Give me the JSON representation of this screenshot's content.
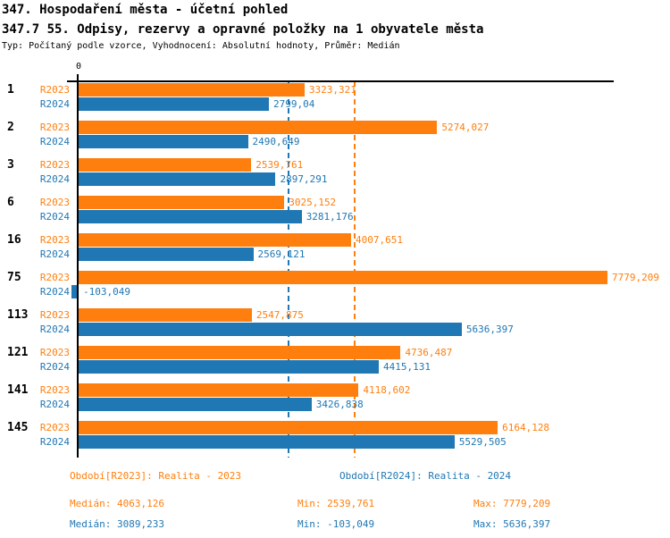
{
  "header": {
    "title": "347. Hospodaření města - účetní pohled",
    "subtitle": "347.7 55. Odpisy, rezervy a opravné položky na 1 obyvatele města",
    "meta": "Typ: Počítaný podle vzorce, Vyhodnocení: Absolutní hodnoty, Průměr: Medián"
  },
  "colors": {
    "r2023": "#ff7f0e",
    "r2024": "#1f77b4",
    "axis": "#000000"
  },
  "axis": {
    "zero_tick_label": "0"
  },
  "chart_data": {
    "type": "bar",
    "orientation": "horizontal",
    "title": "347.7 55. Odpisy, rezervy a opravné položky na 1 obyvatele města",
    "xlim": [
      0,
      7800
    ],
    "grid": false,
    "x_ticks": [
      "0"
    ],
    "categories": [
      "1",
      "2",
      "3",
      "6",
      "16",
      "75",
      "113",
      "121",
      "141",
      "145"
    ],
    "series": [
      {
        "name": "R2023",
        "color": "#ff7f0e",
        "values": [
          3323.321,
          5274.027,
          2539.761,
          3025.152,
          4007.651,
          7779.209,
          2547.875,
          4736.487,
          4118.602,
          6164.128
        ],
        "value_labels": [
          "3323,321",
          "5274,027",
          "2539,761",
          "3025,152",
          "4007,651",
          "7779,209",
          "2547,875",
          "4736,487",
          "4118,602",
          "6164,128"
        ]
      },
      {
        "name": "R2024",
        "color": "#1f77b4",
        "values": [
          2799.04,
          2490.649,
          2897.291,
          3281.176,
          2569.121,
          -103.049,
          5636.397,
          4415.131,
          3426.838,
          5529.505
        ],
        "value_labels": [
          "2799,04",
          "2490,649",
          "2897,291",
          "3281,176",
          "2569,121",
          "-103,049",
          "5636,397",
          "4415,131",
          "3426,838",
          "5529,505"
        ]
      }
    ],
    "median_lines": [
      {
        "series": "R2023",
        "value": 4063.126,
        "color": "#ff7f0e",
        "style": "dashed"
      },
      {
        "series": "R2024",
        "value": 3089.233,
        "color": "#1f77b4",
        "style": "dashed"
      }
    ],
    "legend_position": "bottom"
  },
  "legend": {
    "r2023": "Období[R2023]: Realita - 2023",
    "r2024": "Období[R2024]: Realita - 2024"
  },
  "stats": {
    "r2023": {
      "median": "Medián: 4063,126",
      "min": "Min: 2539,761",
      "max": "Max: 7779,209"
    },
    "r2024": {
      "median": "Medián: 3089,233",
      "min": "Min: -103,049",
      "max": "Max: 5636,397"
    }
  }
}
